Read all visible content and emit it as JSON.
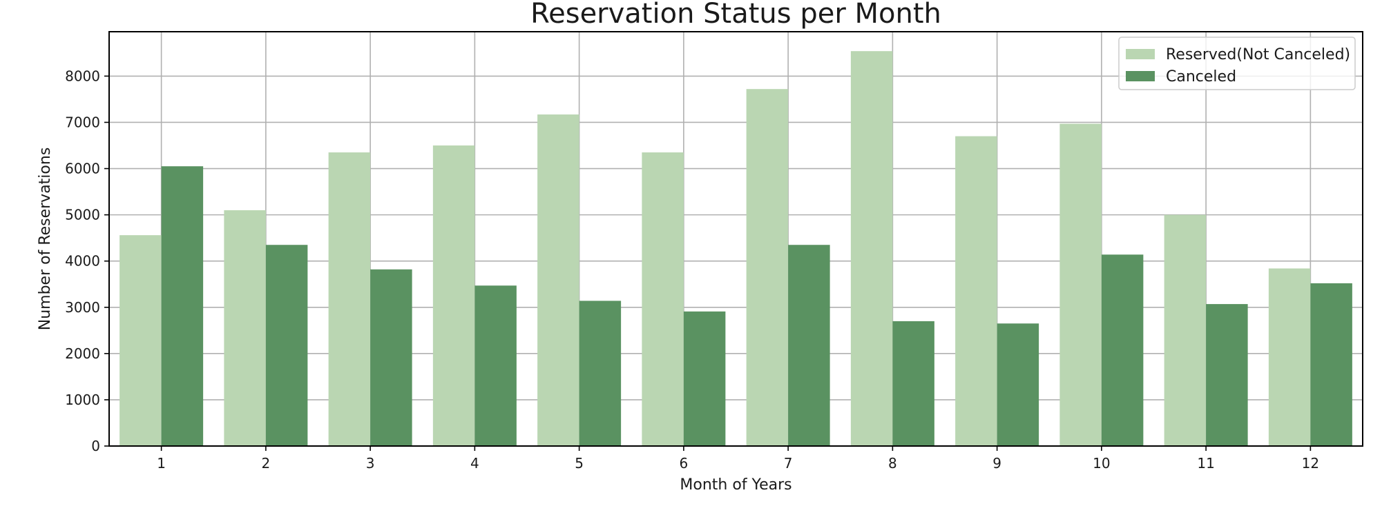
{
  "chart_data": {
    "type": "bar",
    "title": "Reservation Status per Month",
    "xlabel": "Month of Years",
    "ylabel": "Number of Reservations",
    "categories": [
      "1",
      "2",
      "3",
      "4",
      "5",
      "6",
      "7",
      "8",
      "9",
      "10",
      "11",
      "12"
    ],
    "series": [
      {
        "name": "Reserved(Not Canceled)",
        "color": "#bad6b2",
        "values": [
          4560,
          5100,
          6350,
          6500,
          7170,
          6350,
          7720,
          8540,
          6700,
          6970,
          5000,
          3840
        ]
      },
      {
        "name": "Canceled",
        "color": "#5a9261",
        "values": [
          6050,
          4350,
          3820,
          3470,
          3140,
          2910,
          4350,
          2700,
          2650,
          4140,
          3070,
          3520
        ]
      }
    ],
    "ylim": [
      0,
      8960
    ],
    "yticks": [
      0,
      1000,
      2000,
      3000,
      4000,
      5000,
      6000,
      7000,
      8000
    ],
    "ytick_labels": [
      "0",
      "1000",
      "2000",
      "3000",
      "4000",
      "5000",
      "6000",
      "7000",
      "8000"
    ],
    "grid": true,
    "legend_position": "top-right"
  }
}
